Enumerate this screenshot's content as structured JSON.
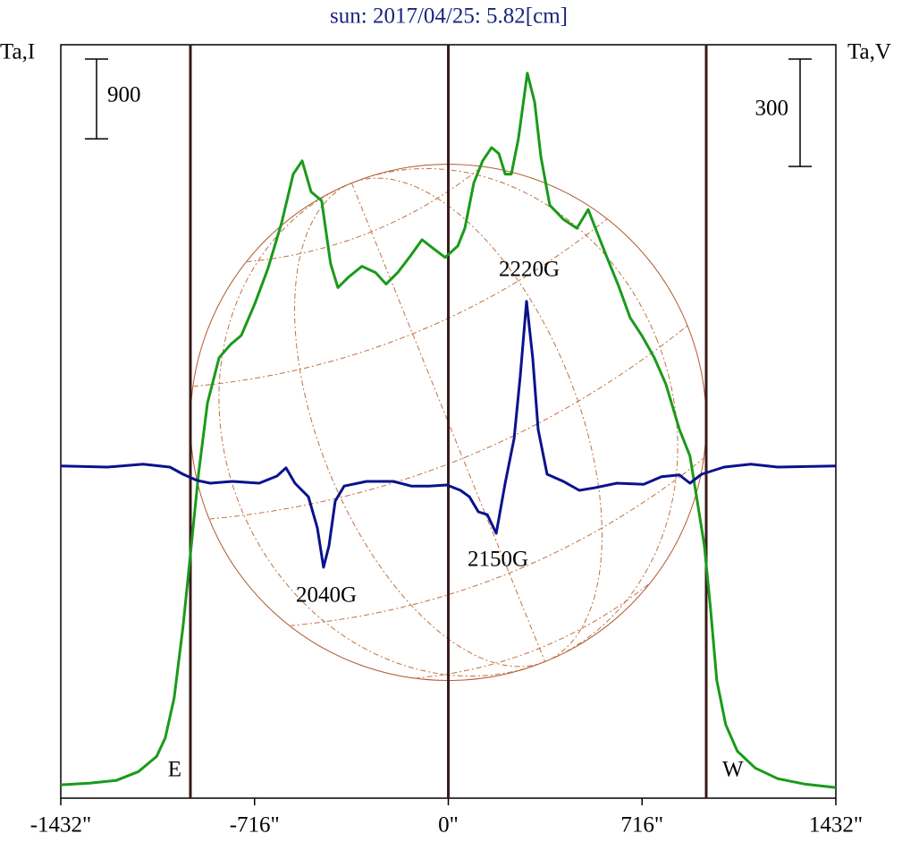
{
  "chart_data": {
    "type": "line",
    "title": "sun: 2017/04/25: 5.82[cm]",
    "y_label": "Ta,I",
    "y2_label": "Ta,V",
    "xlim": [
      -1432,
      1432
    ],
    "xticks": [
      {
        "value": -1432,
        "label": "-1432\""
      },
      {
        "value": -716,
        "label": "-716\""
      },
      {
        "value": 0,
        "label": "0\""
      },
      {
        "value": 716,
        "label": "716\""
      },
      {
        "value": 1432,
        "label": "1432\""
      }
    ],
    "ylim": [
      0,
      8500
    ],
    "y2lim": [
      -880,
      1225
    ],
    "limb": 953,
    "i_scale": 900,
    "v_scale": 300,
    "limb_labels": [
      "E",
      "W"
    ],
    "annotations": [
      "2220G",
      "2150G",
      "2040G"
    ],
    "series": [
      {
        "name": "I",
        "color": "#1a9a1a",
        "x": [
          -1432,
          -1326,
          -1227,
          -1145,
          -1078,
          -1046,
          -1013,
          -980,
          -953,
          -923,
          -890,
          -847,
          -804,
          -765,
          -715,
          -666,
          -616,
          -573,
          -540,
          -507,
          -468,
          -435,
          -408,
          -368,
          -319,
          -269,
          -230,
          -187,
          -137,
          -97,
          -55,
          -12,
          35,
          61,
          94,
          127,
          160,
          187,
          210,
          233,
          259,
          292,
          319,
          342,
          375,
          425,
          475,
          517,
          550,
          589,
          629,
          672,
          715,
          761,
          804,
          854,
          893,
          920,
          946,
          969,
          992,
          1025,
          1068,
          1134,
          1217,
          1316,
          1432
        ],
        "values": [
          150,
          170,
          200,
          300,
          470,
          680,
          1130,
          1940,
          2750,
          3660,
          4460,
          4970,
          5120,
          5220,
          5580,
          5980,
          6490,
          7040,
          7190,
          6840,
          6740,
          6030,
          5760,
          5880,
          6000,
          5930,
          5800,
          5930,
          6130,
          6300,
          6200,
          6100,
          6230,
          6430,
          6940,
          7190,
          7340,
          7270,
          7040,
          7040,
          7440,
          8180,
          7850,
          7240,
          6690,
          6530,
          6430,
          6640,
          6380,
          6080,
          5780,
          5420,
          5220,
          4970,
          4670,
          4160,
          3860,
          3350,
          2850,
          2140,
          1330,
          830,
          530,
          340,
          220,
          160,
          120
        ]
      },
      {
        "name": "V",
        "color": "#0a128c",
        "axis": "y2",
        "x": [
          -1432,
          -1260,
          -1128,
          -1029,
          -980,
          -930,
          -880,
          -798,
          -699,
          -633,
          -600,
          -567,
          -517,
          -484,
          -461,
          -441,
          -418,
          -385,
          -302,
          -203,
          -137,
          -71,
          -5,
          45,
          78,
          111,
          144,
          177,
          210,
          243,
          266,
          289,
          312,
          332,
          365,
          425,
          484,
          540,
          623,
          722,
          788,
          854,
          893,
          936,
          1019,
          1118,
          1217,
          1432
        ],
        "values": [
          48,
          45,
          53,
          45,
          25,
          8,
          0,
          5,
          0,
          20,
          43,
          0,
          -38,
          -125,
          -235,
          -175,
          -50,
          -8,
          5,
          5,
          -8,
          -8,
          -5,
          -20,
          -38,
          -80,
          -88,
          -140,
          0,
          125,
          300,
          508,
          350,
          150,
          25,
          5,
          -20,
          -13,
          0,
          -3,
          18,
          23,
          0,
          25,
          45,
          53,
          45,
          48
        ]
      }
    ]
  }
}
